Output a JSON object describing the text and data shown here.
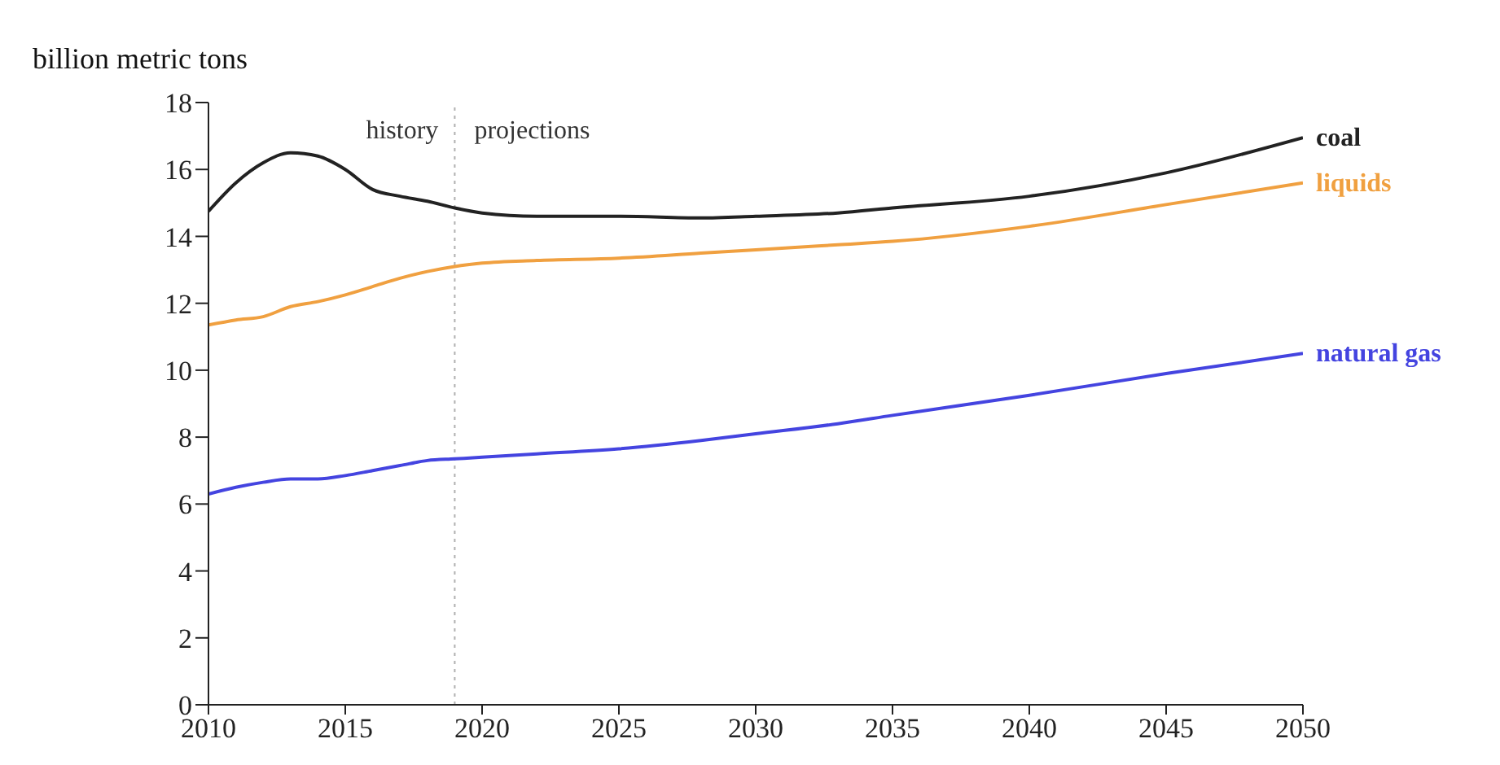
{
  "chart_data": {
    "type": "line",
    "ylabel": "billion metric tons",
    "x": [
      2010,
      2011,
      2012,
      2013,
      2014,
      2015,
      2016,
      2017,
      2018,
      2019,
      2020,
      2022,
      2025,
      2028,
      2030,
      2033,
      2035,
      2040,
      2045,
      2050
    ],
    "series": [
      {
        "name": "coal",
        "color": "#222222",
        "values": [
          14.75,
          15.6,
          16.2,
          16.5,
          16.4,
          16.0,
          15.4,
          15.2,
          15.05,
          14.85,
          14.7,
          14.6,
          14.6,
          14.55,
          14.6,
          14.7,
          14.85,
          15.2,
          15.9,
          16.95
        ]
      },
      {
        "name": "liquids",
        "color": "#f0a040",
        "values": [
          11.35,
          11.5,
          11.6,
          11.9,
          12.05,
          12.25,
          12.5,
          12.75,
          12.95,
          13.1,
          13.2,
          13.28,
          13.35,
          13.5,
          13.6,
          13.75,
          13.85,
          14.3,
          14.95,
          15.6
        ]
      },
      {
        "name": "natural gas",
        "color": "#4444e0",
        "values": [
          6.3,
          6.5,
          6.65,
          6.75,
          6.75,
          6.85,
          7.0,
          7.15,
          7.3,
          7.35,
          7.4,
          7.5,
          7.65,
          7.9,
          8.1,
          8.4,
          8.65,
          9.25,
          9.9,
          10.5
        ]
      }
    ],
    "xlim": [
      2010,
      2050
    ],
    "xticks": [
      2010,
      2015,
      2020,
      2025,
      2030,
      2035,
      2040,
      2045,
      2050
    ],
    "ylim": [
      0,
      18
    ],
    "yticks": [
      0,
      2,
      4,
      6,
      8,
      10,
      12,
      14,
      16,
      18
    ],
    "ref_lines": [
      {
        "axis": "x",
        "value": 2019,
        "color": "#b0b0b0",
        "line_style": "dotted"
      }
    ],
    "annotations": [
      "history",
      "projections"
    ],
    "grid": false,
    "marker": "none",
    "line_style": "solid"
  }
}
